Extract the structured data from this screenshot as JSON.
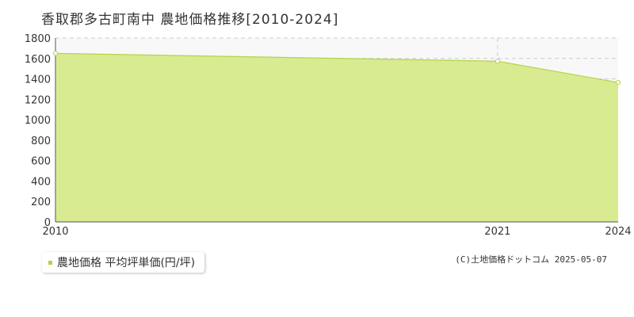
{
  "title": "香取郡多古町南中 農地価格推移[2010-2024]",
  "legend": {
    "label": "農地価格 平均坪単価(円/坪)"
  },
  "credit": "(C)土地価格ドットコム 2025-05-07",
  "colors": {
    "area_fill": "#d9eb91",
    "line": "#b4d24a",
    "plot_bg": "#f8f8f8",
    "grid": "#cccccc",
    "axis": "#555555",
    "legend_swatch": "#b4d24a"
  },
  "chart_data": {
    "type": "area",
    "title": "香取郡多古町南中 農地価格推移[2010-2024]",
    "xlabel": "",
    "ylabel": "",
    "x": [
      2010,
      2021,
      2024
    ],
    "series": [
      {
        "name": "農地価格 平均坪単価(円/坪)",
        "values": [
          1650,
          1573,
          1365
        ]
      }
    ],
    "x_ticks": [
      "2010",
      "2021",
      "2024"
    ],
    "y_ticks": [
      0,
      200,
      400,
      600,
      800,
      1000,
      1200,
      1400,
      1600,
      1800
    ],
    "xlim": [
      2010,
      2024
    ],
    "ylim": [
      0,
      1800
    ],
    "grid": true,
    "legend_position": "bottom-left"
  }
}
